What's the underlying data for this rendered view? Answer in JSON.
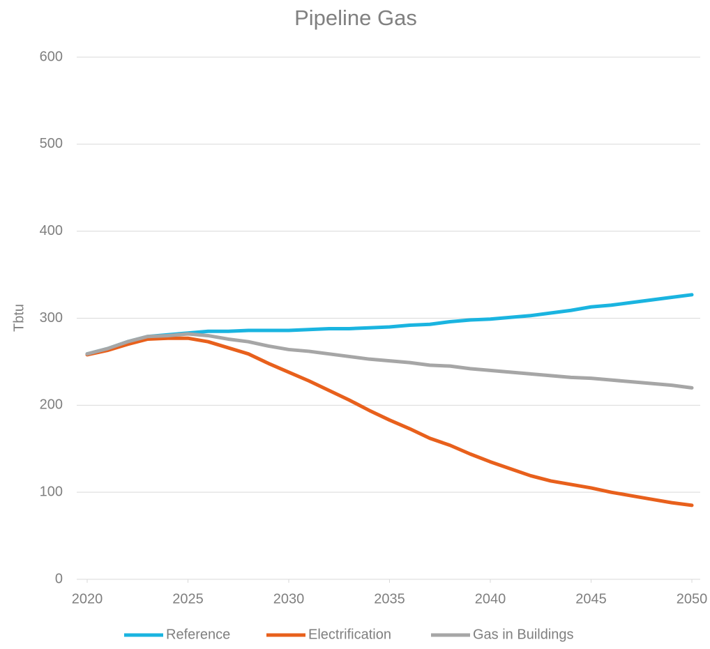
{
  "chart_data": {
    "type": "line",
    "title": "Pipeline Gas",
    "ylabel": "Tbtu",
    "x": [
      2020,
      2021,
      2022,
      2023,
      2024,
      2025,
      2026,
      2027,
      2028,
      2029,
      2030,
      2031,
      2032,
      2033,
      2034,
      2035,
      2036,
      2037,
      2038,
      2039,
      2040,
      2041,
      2042,
      2043,
      2044,
      2045,
      2046,
      2047,
      2048,
      2049,
      2050
    ],
    "series": [
      {
        "name": "Reference",
        "color": "#1ab4e0",
        "values": [
          259,
          265,
          273,
          279,
          281,
          283,
          285,
          285,
          286,
          286,
          286,
          287,
          288,
          288,
          289,
          290,
          292,
          293,
          296,
          298,
          299,
          301,
          303,
          306,
          309,
          313,
          315,
          318,
          321,
          324,
          327
        ]
      },
      {
        "name": "Electrification",
        "color": "#e8601c",
        "values": [
          258,
          263,
          270,
          276,
          277,
          277,
          273,
          266,
          259,
          248,
          238,
          228,
          217,
          206,
          194,
          183,
          173,
          162,
          154,
          144,
          135,
          127,
          119,
          113,
          109,
          105,
          100,
          96,
          92,
          88,
          85
        ]
      },
      {
        "name": "Gas in Buildings",
        "color": "#a6a6a6",
        "values": [
          259,
          265,
          273,
          279,
          280,
          282,
          280,
          276,
          273,
          268,
          264,
          262,
          259,
          256,
          253,
          251,
          249,
          246,
          245,
          242,
          240,
          238,
          236,
          234,
          232,
          231,
          229,
          227,
          225,
          223,
          220
        ]
      }
    ],
    "xlim": [
      2020,
      2050
    ],
    "xticks": [
      2020,
      2025,
      2030,
      2035,
      2040,
      2045,
      2050
    ],
    "ylim": [
      0,
      600
    ],
    "yticks": [
      0,
      100,
      200,
      300,
      400,
      500,
      600
    ],
    "grid": true,
    "legend": "bottom"
  }
}
